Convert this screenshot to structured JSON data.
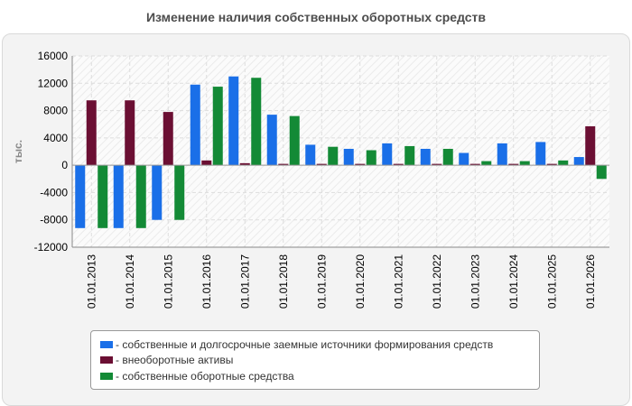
{
  "chart_data": {
    "type": "bar",
    "title": "Изменение наличия собственных оборотных средств",
    "ylabel": "тыс.",
    "xlabel": "",
    "ylim": [
      -12000,
      16000
    ],
    "yticks": [
      16000,
      12000,
      8000,
      4000,
      0,
      -4000,
      -8000,
      -12000
    ],
    "grid": true,
    "legend_position": "bottom",
    "categories": [
      "01.01.2013",
      "01.01.2014",
      "01.01.2015",
      "01.01.2016",
      "01.01.2017",
      "01.01.2018",
      "01.01.2019",
      "01.01.2020",
      "01.01.2021",
      "01.01.2022",
      "01.01.2023",
      "01.01.2024",
      "01.01.2025",
      "01.01.2026"
    ],
    "series": [
      {
        "name": "- собственные и долгосрочные заемные источники формирования средств",
        "color": "#1a6fe8",
        "values": [
          -9200,
          -9200,
          -8000,
          11800,
          13000,
          7400,
          3000,
          2400,
          3200,
          2400,
          1800,
          3200,
          3400,
          1200
        ]
      },
      {
        "name": "- внеоборотные активы",
        "color": "#6b0f33",
        "values": [
          9500,
          9500,
          7800,
          700,
          300,
          200,
          200,
          200,
          200,
          200,
          200,
          200,
          200,
          5700
        ]
      },
      {
        "name": "- собственные оборотные средства",
        "color": "#138a36",
        "values": [
          -9200,
          -9200,
          -8000,
          11500,
          12800,
          7200,
          2700,
          2200,
          2800,
          2400,
          600,
          600,
          700,
          -2000
        ]
      }
    ]
  }
}
